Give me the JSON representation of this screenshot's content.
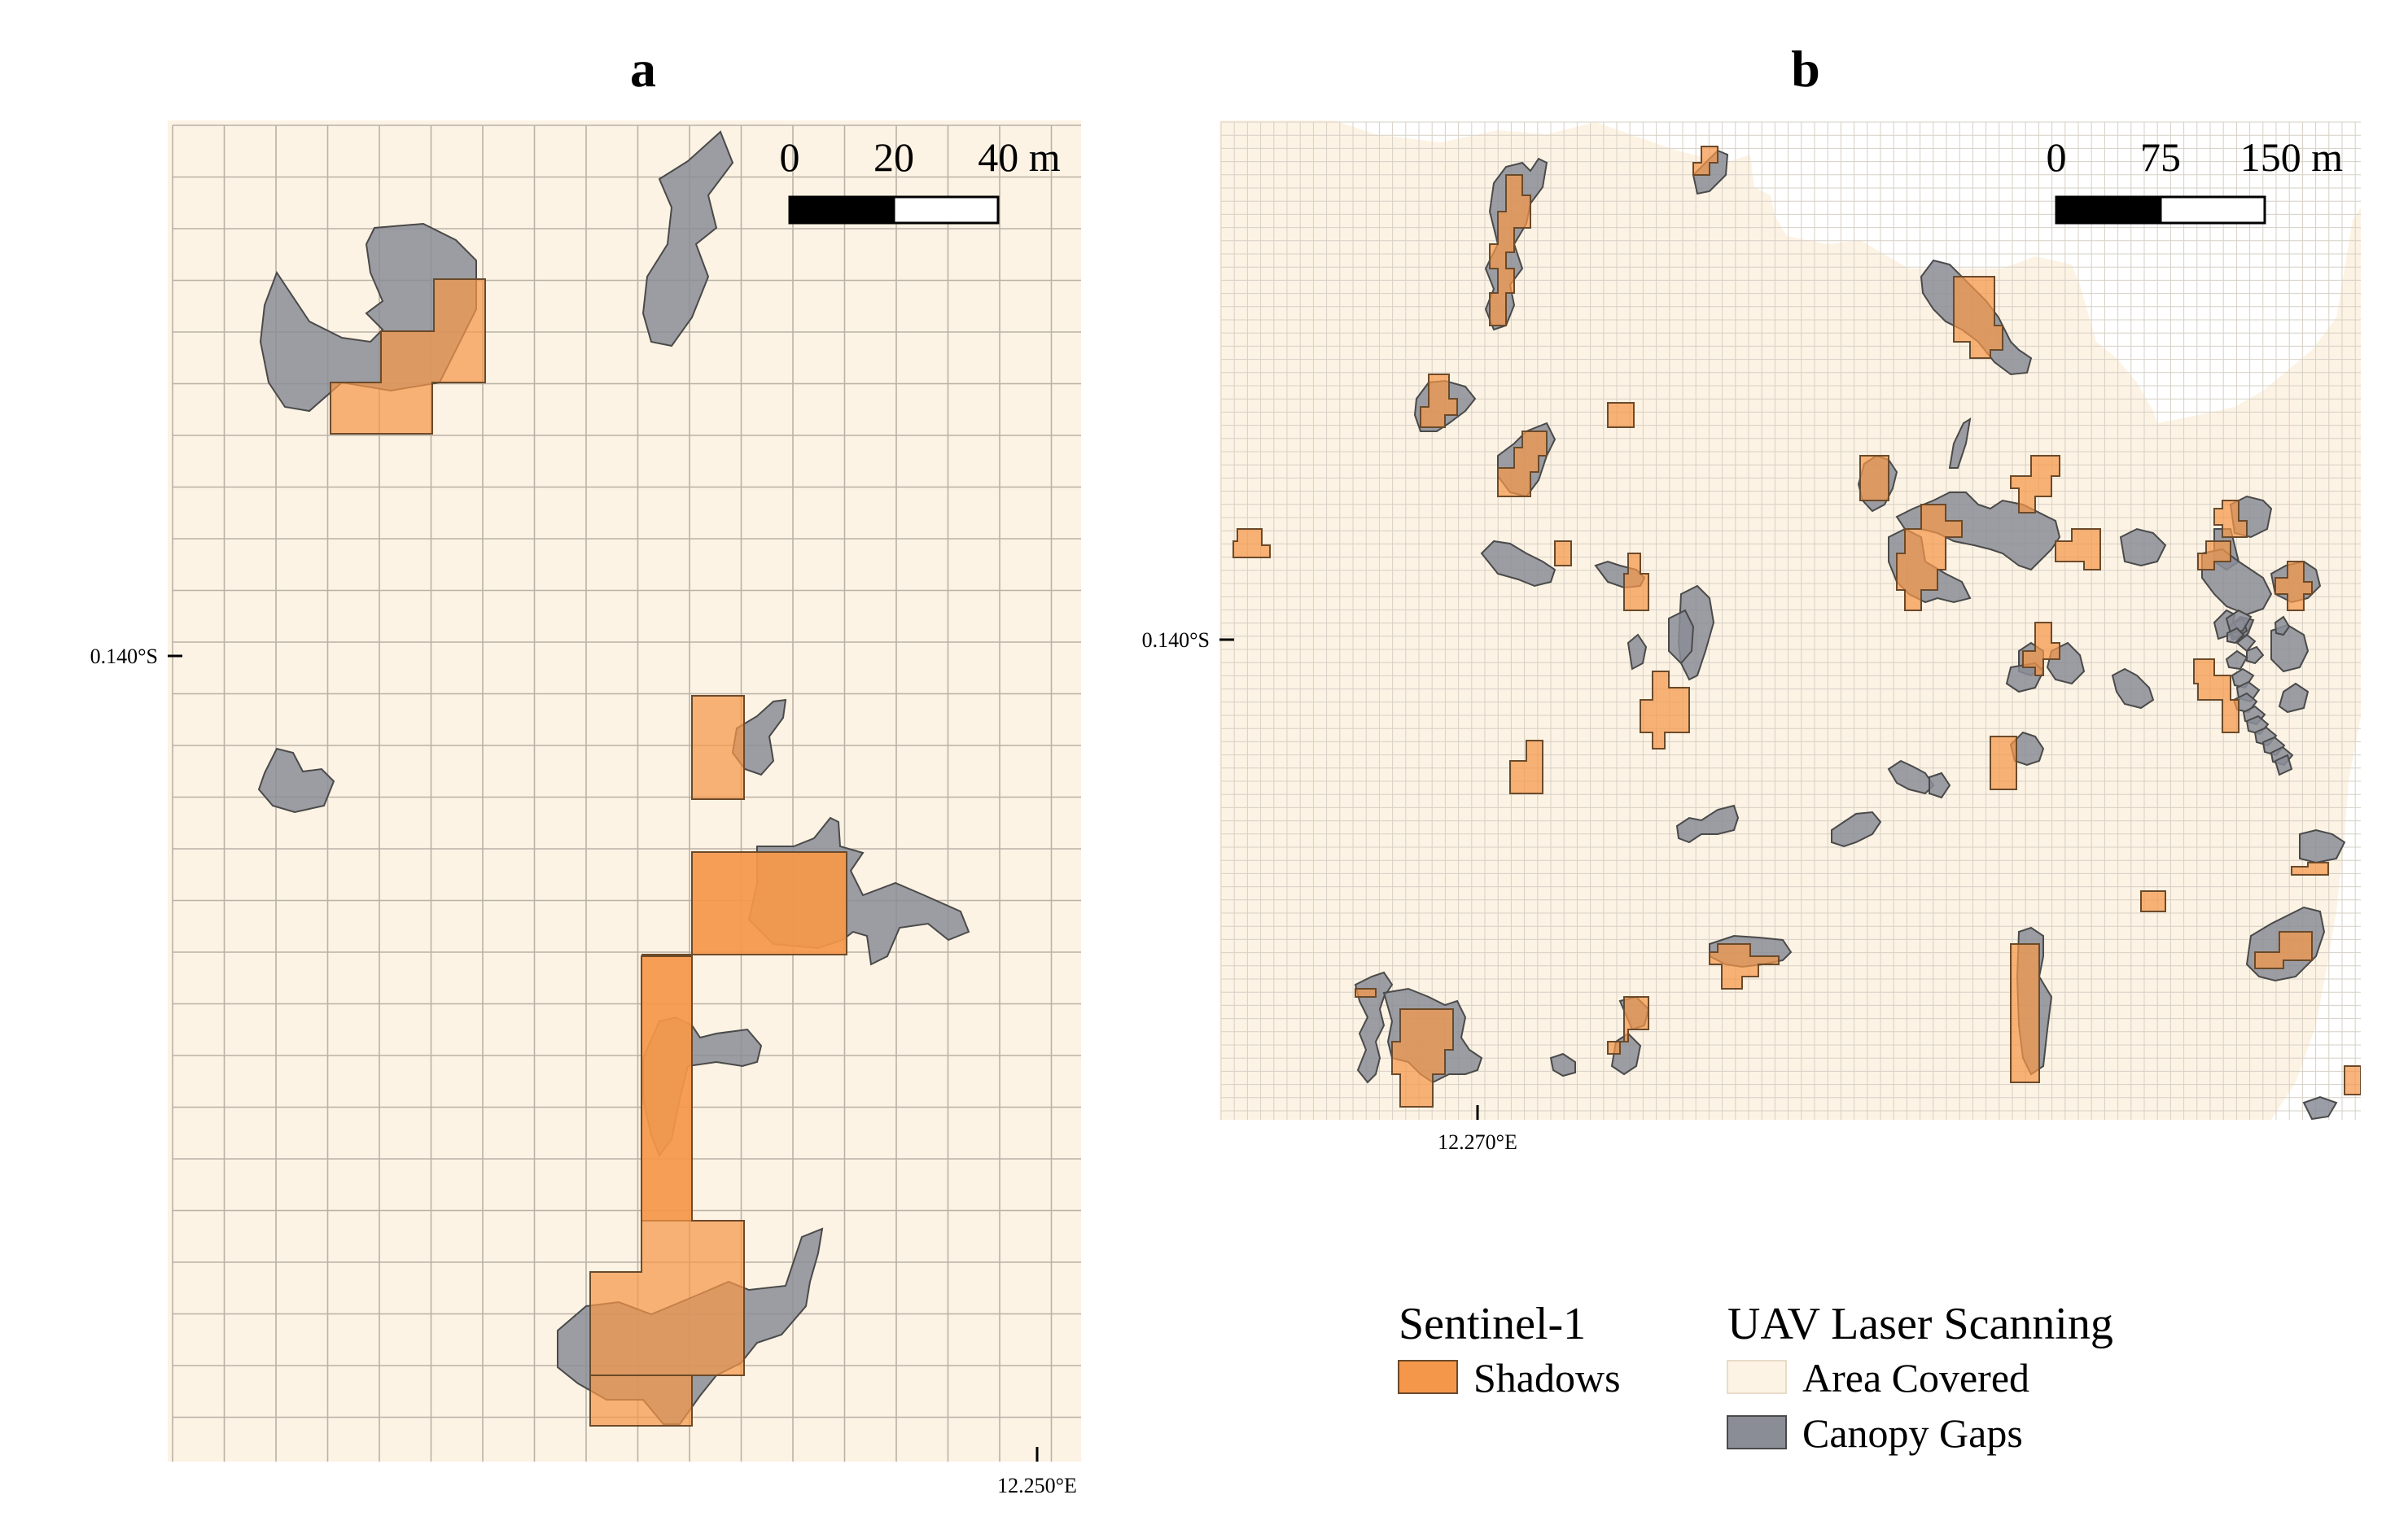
{
  "panels": [
    {
      "letter": "a",
      "lat_tick": "0.140°S",
      "lon_tick": "12.250°E",
      "scale": {
        "labels": [
          "0",
          "20",
          "40 m"
        ]
      }
    },
    {
      "letter": "b",
      "lat_tick": "0.140°S",
      "lon_tick": "12.270°E",
      "scale": {
        "labels": [
          "0",
          "75",
          "150 m"
        ]
      }
    }
  ],
  "legend": {
    "groups": [
      {
        "title": "Sentinel-1",
        "items": [
          {
            "label": "Shadows",
            "color": "#f5974a"
          }
        ]
      },
      {
        "title": "UAV Laser Scanning",
        "items": [
          {
            "label": "Area Covered",
            "color": "#fdf3e4"
          },
          {
            "label": "Canopy Gaps",
            "color": "#8a8d96"
          }
        ]
      }
    ]
  },
  "colors": {
    "area_covered": "#fdf3e4",
    "shadow_fill": "#f5974a",
    "gap_fill": "#8a8d96",
    "grid_line": "#b9b2a6"
  }
}
